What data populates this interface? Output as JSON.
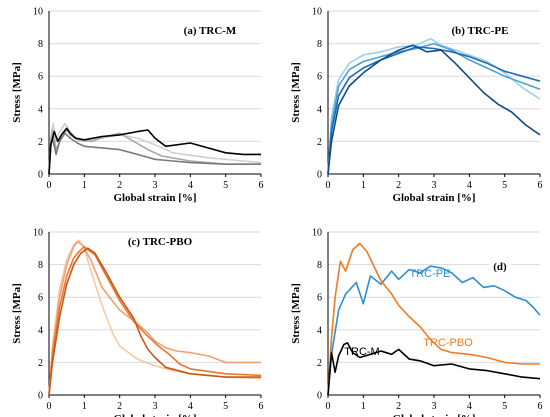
{
  "colors": {
    "grey_light": "#d0d0d0",
    "grey_mid": "#a8a8a8",
    "grey_dark": "#7a7a7a",
    "black": "#000000",
    "blue_light": "#9ccfee",
    "blue_mid": "#4f9fd8",
    "blue_dark": "#1e6bb0",
    "blue_navy": "#0f4a84",
    "orange_light": "#f8c8a6",
    "orange_mid": "#f3a070",
    "orange_dark": "#e8772e",
    "orange_deep": "#cc5616",
    "label_pe": "#2e8fd0",
    "label_pbo": "#f07b22",
    "label_m": "#000000",
    "grid": "#d9d9d9"
  },
  "chart_data": [
    {
      "type": "line",
      "title": "(a) TRC-M",
      "xlabel": "Global strain [%]",
      "ylabel": "Stress [MPa]",
      "xlim": [
        0,
        6
      ],
      "ylim": [
        0,
        10
      ],
      "xticks": [
        "0",
        "1",
        "2",
        "3",
        "4",
        "5",
        "6"
      ],
      "yticks": [
        "0",
        "2",
        "4",
        "6",
        "8",
        "10"
      ],
      "grid": "horizontal",
      "series": [
        {
          "color": "grey_light",
          "x": [
            0,
            0.05,
            0.12,
            0.2,
            0.3,
            0.45,
            0.55,
            0.7,
            1.0,
            1.5,
            2.0,
            2.5,
            3.0,
            3.5,
            4.5,
            5.5,
            6
          ],
          "y": [
            0,
            2.2,
            3.1,
            2.0,
            2.6,
            3.1,
            2.8,
            2.3,
            2.0,
            2.2,
            2.4,
            2.2,
            1.8,
            1.3,
            1.0,
            0.8,
            0.7
          ]
        },
        {
          "color": "grey_mid",
          "x": [
            0,
            0.05,
            0.1,
            0.2,
            0.35,
            0.5,
            0.6,
            0.8,
            1.2,
            1.6,
            2.0,
            2.4,
            2.8,
            3.2,
            4.0,
            5.0,
            6
          ],
          "y": [
            0,
            2.0,
            2.7,
            1.5,
            2.2,
            2.7,
            2.4,
            2.1,
            2.0,
            2.3,
            2.5,
            2.0,
            1.5,
            1.1,
            0.8,
            0.6,
            0.6
          ]
        },
        {
          "color": "grey_dark",
          "x": [
            0,
            0.05,
            0.1,
            0.2,
            0.3,
            0.45,
            0.6,
            0.8,
            1.0,
            1.5,
            2.0,
            2.5,
            3.0,
            3.5,
            4.0,
            5.0,
            6
          ],
          "y": [
            0,
            1.7,
            2.2,
            1.2,
            2.0,
            2.5,
            2.2,
            1.9,
            1.7,
            1.6,
            1.5,
            1.2,
            0.9,
            0.8,
            0.7,
            0.6,
            0.6
          ]
        },
        {
          "color": "black",
          "x": [
            0,
            0.05,
            0.15,
            0.25,
            0.35,
            0.5,
            0.6,
            0.75,
            1.0,
            1.5,
            2.0,
            2.5,
            2.8,
            3.0,
            3.3,
            4.0,
            4.5,
            5.0,
            5.5,
            6
          ],
          "y": [
            0,
            1.8,
            2.6,
            2.0,
            2.4,
            2.8,
            2.5,
            2.2,
            2.1,
            2.3,
            2.4,
            2.6,
            2.7,
            2.2,
            1.7,
            1.9,
            1.6,
            1.3,
            1.2,
            1.2
          ]
        }
      ]
    },
    {
      "type": "line",
      "title": "(b) TRC-PE",
      "xlabel": "Global strain [%]",
      "ylabel": "Stress [MPa]",
      "xlim": [
        0,
        6
      ],
      "ylim": [
        0,
        10
      ],
      "xticks": [
        "0",
        "1",
        "2",
        "3",
        "4",
        "5",
        "6"
      ],
      "yticks": [
        "0",
        "2",
        "4",
        "6",
        "8",
        "10"
      ],
      "grid": "horizontal",
      "series": [
        {
          "color": "blue_light",
          "x": [
            0,
            0.1,
            0.3,
            0.6,
            1.0,
            1.5,
            2.0,
            2.5,
            2.9,
            3.2,
            3.6,
            4.0,
            4.5,
            5.0,
            5.5,
            6
          ],
          "y": [
            0,
            3.5,
            5.8,
            6.8,
            7.3,
            7.5,
            7.8,
            7.9,
            8.3,
            7.9,
            7.6,
            7.3,
            6.9,
            6.2,
            5.3,
            4.6
          ]
        },
        {
          "color": "blue_mid",
          "x": [
            0,
            0.1,
            0.3,
            0.6,
            1.0,
            1.5,
            2.0,
            2.5,
            3.0,
            3.5,
            4.0,
            4.5,
            5.0,
            5.5,
            6
          ],
          "y": [
            0,
            3.0,
            5.4,
            6.4,
            6.9,
            7.2,
            7.5,
            7.7,
            8.0,
            7.6,
            7.0,
            6.5,
            6.0,
            5.6,
            5.2
          ]
        },
        {
          "color": "blue_dark",
          "x": [
            0,
            0.1,
            0.3,
            0.6,
            1.0,
            1.5,
            2.0,
            2.5,
            3.0,
            3.5,
            4.0,
            4.5,
            5.0,
            5.5,
            6
          ],
          "y": [
            0,
            2.6,
            4.8,
            5.9,
            6.5,
            7.0,
            7.4,
            7.8,
            7.7,
            7.5,
            7.2,
            6.8,
            6.3,
            6.0,
            5.7
          ]
        },
        {
          "color": "blue_navy",
          "x": [
            0,
            0.1,
            0.3,
            0.6,
            1.0,
            1.5,
            2.0,
            2.4,
            2.8,
            3.2,
            3.6,
            4.0,
            4.4,
            4.8,
            5.2,
            5.6,
            6
          ],
          "y": [
            0,
            2.0,
            4.2,
            5.4,
            6.2,
            7.0,
            7.6,
            7.9,
            7.5,
            7.6,
            6.8,
            5.9,
            5.0,
            4.3,
            3.8,
            3.0,
            2.4
          ]
        }
      ]
    },
    {
      "type": "line",
      "title": "(c) TRC-PBO",
      "xlabel": "Global strain [%]",
      "ylabel": "Stress [MPa]",
      "xlim": [
        0,
        6
      ],
      "ylim": [
        0,
        10
      ],
      "xticks": [
        "0",
        "1",
        "2",
        "3",
        "4",
        "5",
        "6"
      ],
      "yticks": [
        "0",
        "2",
        "4",
        "6",
        "8",
        "10"
      ],
      "grid": "horizontal",
      "series": [
        {
          "color": "orange_light",
          "x": [
            0,
            0.1,
            0.3,
            0.5,
            0.7,
            0.85,
            1.0,
            1.2,
            1.5,
            1.8,
            2.0,
            2.5,
            3.0,
            3.5,
            4.0,
            5.0,
            6
          ],
          "y": [
            0,
            3.0,
            6.5,
            8.3,
            9.2,
            9.5,
            9.0,
            7.5,
            5.5,
            3.8,
            3.0,
            2.2,
            1.8,
            1.5,
            1.3,
            1.1,
            1.0
          ]
        },
        {
          "color": "orange_mid",
          "x": [
            0,
            0.1,
            0.3,
            0.5,
            0.7,
            0.8,
            0.95,
            1.2,
            1.5,
            2.0,
            2.5,
            2.8,
            3.0,
            3.3,
            3.6,
            4.0,
            4.5,
            5.0,
            6
          ],
          "y": [
            0,
            2.8,
            6.0,
            8.0,
            9.1,
            9.4,
            9.2,
            8.2,
            6.6,
            5.2,
            4.4,
            3.8,
            3.3,
            2.9,
            2.7,
            2.6,
            2.4,
            2.0,
            2.0
          ]
        },
        {
          "color": "orange_dark",
          "x": [
            0,
            0.1,
            0.3,
            0.5,
            0.7,
            0.85,
            1.0,
            1.3,
            1.6,
            2.0,
            2.4,
            2.8,
            3.1,
            3.4,
            3.7,
            4.0,
            5.0,
            6
          ],
          "y": [
            0,
            2.4,
            5.4,
            7.3,
            8.4,
            8.8,
            9.1,
            8.6,
            7.4,
            5.8,
            4.5,
            3.6,
            3.0,
            2.5,
            1.9,
            1.6,
            1.3,
            1.2
          ]
        },
        {
          "color": "orange_deep",
          "x": [
            0,
            0.1,
            0.3,
            0.5,
            0.7,
            0.9,
            1.1,
            1.3,
            1.6,
            2.0,
            2.4,
            2.6,
            2.8,
            3.0,
            3.3,
            4.0,
            5.0,
            6
          ],
          "y": [
            0,
            2.0,
            4.8,
            6.8,
            8.0,
            8.7,
            9.0,
            8.7,
            7.6,
            6.0,
            4.7,
            3.6,
            2.8,
            2.3,
            1.7,
            1.3,
            1.1,
            1.1
          ]
        }
      ]
    },
    {
      "type": "line",
      "title": "(d)",
      "xlabel": "Global strain [%]",
      "ylabel": "Stress [MPa]",
      "xlim": [
        0,
        6
      ],
      "ylim": [
        0,
        10
      ],
      "xticks": [
        "0",
        "1",
        "2",
        "3",
        "4",
        "5",
        "6"
      ],
      "yticks": [
        "0",
        "2",
        "4",
        "6",
        "8",
        "10"
      ],
      "grid": "horizontal",
      "series": [
        {
          "name": "TRC-PE",
          "color": "label_pe",
          "x": [
            0,
            0.1,
            0.3,
            0.5,
            0.8,
            1.0,
            1.2,
            1.5,
            1.8,
            2.0,
            2.3,
            2.6,
            2.9,
            3.2,
            3.5,
            3.8,
            4.1,
            4.4,
            4.7,
            5.0,
            5.3,
            5.6,
            5.8,
            6
          ],
          "y": [
            0,
            2.5,
            5.2,
            6.2,
            6.9,
            5.6,
            7.3,
            6.8,
            7.6,
            7.1,
            7.7,
            7.5,
            7.9,
            7.8,
            7.5,
            6.9,
            7.2,
            6.6,
            6.7,
            6.4,
            6.0,
            5.8,
            5.4,
            4.9
          ]
        },
        {
          "name": "TRC-PBO",
          "color": "label_pbo",
          "x": [
            0,
            0.1,
            0.2,
            0.35,
            0.5,
            0.7,
            0.9,
            1.1,
            1.3,
            1.5,
            1.8,
            2.0,
            2.3,
            2.6,
            2.9,
            3.2,
            3.5,
            4.0,
            4.5,
            5.0,
            5.5,
            6
          ],
          "y": [
            0,
            3.5,
            6.0,
            8.2,
            7.6,
            8.9,
            9.3,
            8.8,
            7.9,
            7.0,
            6.2,
            5.5,
            4.8,
            4.2,
            3.4,
            2.8,
            2.6,
            2.5,
            2.3,
            2.0,
            1.9,
            1.9
          ]
        },
        {
          "name": "TRC-M",
          "color": "label_m",
          "x": [
            0,
            0.1,
            0.2,
            0.3,
            0.45,
            0.55,
            0.7,
            0.9,
            1.2,
            1.5,
            1.8,
            2.0,
            2.3,
            2.6,
            3.0,
            3.5,
            4.0,
            4.5,
            5.0,
            5.5,
            6
          ],
          "y": [
            0,
            2.6,
            1.4,
            2.4,
            3.1,
            3.2,
            2.6,
            2.3,
            2.5,
            2.7,
            2.5,
            2.8,
            2.2,
            2.1,
            1.8,
            1.9,
            1.6,
            1.5,
            1.3,
            1.1,
            1.0
          ]
        }
      ]
    }
  ]
}
